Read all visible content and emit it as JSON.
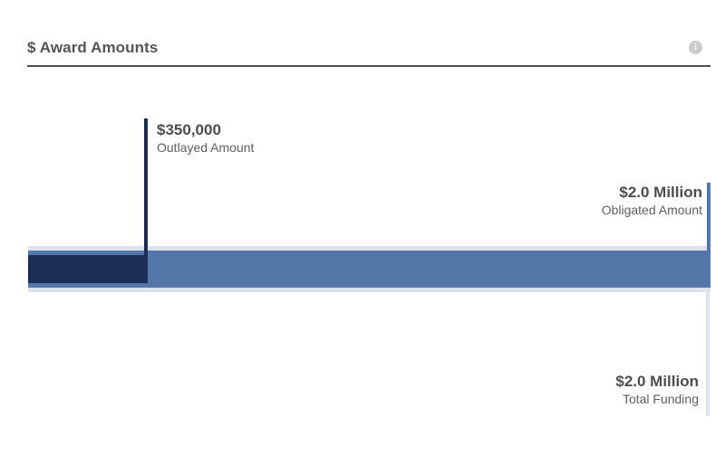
{
  "header": {
    "title": "$ Award Amounts",
    "info_icon_glyph": "i"
  },
  "colors": {
    "outlayed": "#1b2e55",
    "obligated": "#5477a9",
    "total_funding": "#dce2ee",
    "divider": "#4f4f4f",
    "value_text": "#4d4d4d",
    "label_text": "#5e5e5e",
    "info_icon_bg": "#cbcbcb"
  },
  "chart_data": {
    "type": "bar",
    "subtype": "nested-horizontal-award-amounts",
    "title": "$ Award Amounts",
    "xlim": [
      0,
      2000000
    ],
    "grid": false,
    "legend": "inline-callouts",
    "series": [
      {
        "key": "total",
        "name": "Total Funding",
        "value": 2000000,
        "display_value": "$2.0 Million",
        "color": "#dce2ee"
      },
      {
        "key": "obligated",
        "name": "Obligated Amount",
        "value": 2000000,
        "display_value": "$2.0 Million",
        "color": "#5477a9"
      },
      {
        "key": "outlayed",
        "name": "Outlayed Amount",
        "value": 350000,
        "display_value": "$350,000",
        "color": "#1b2e55"
      }
    ]
  },
  "callouts": {
    "outlayed": {
      "value": "$350,000",
      "label": "Outlayed Amount"
    },
    "obligated": {
      "value": "$2.0 Million",
      "label": "Obligated Amount"
    },
    "total": {
      "value": "$2.0 Million",
      "label": "Total Funding"
    }
  }
}
